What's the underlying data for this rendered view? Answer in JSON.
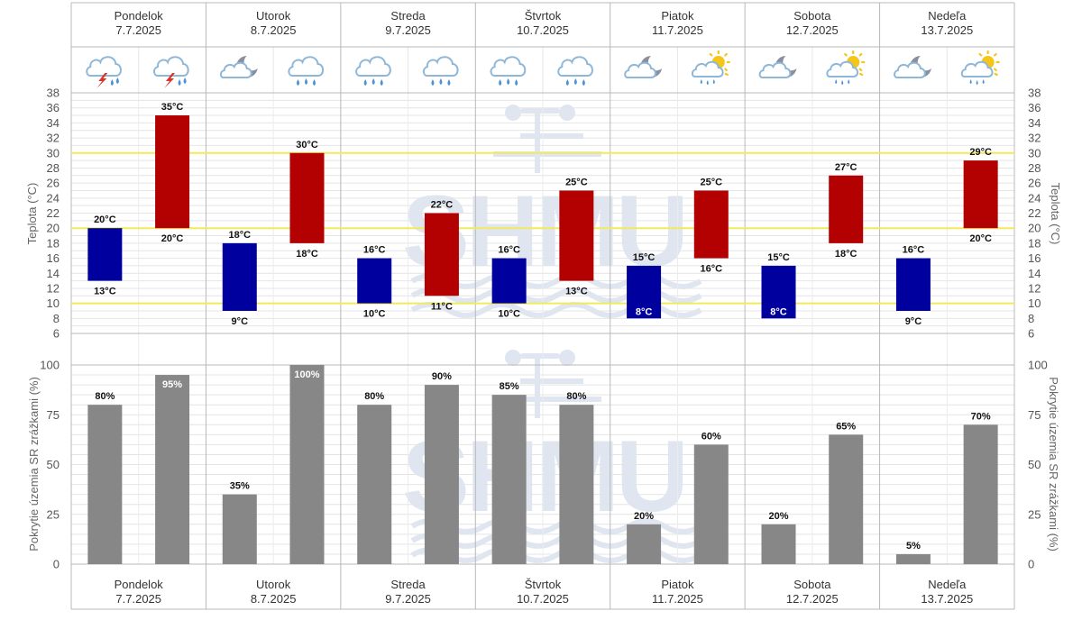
{
  "days": [
    {
      "name": "Pondelok",
      "date": "7.7.2025",
      "icons": [
        "storm-icon",
        "storm-icon"
      ]
    },
    {
      "name": "Utorok",
      "date": "8.7.2025",
      "icons": [
        "partly-cloudy-night-icon",
        "rain-icon"
      ]
    },
    {
      "name": "Streda",
      "date": "9.7.2025",
      "icons": [
        "rain-icon",
        "rain-icon"
      ]
    },
    {
      "name": "Štvrtok",
      "date": "10.7.2025",
      "icons": [
        "rain-icon",
        "rain-icon"
      ]
    },
    {
      "name": "Piatok",
      "date": "11.7.2025",
      "icons": [
        "partly-cloudy-night-icon",
        "sun-shower-icon"
      ]
    },
    {
      "name": "Sobota",
      "date": "12.7.2025",
      "icons": [
        "partly-cloudy-night-icon",
        "sun-shower-icon"
      ]
    },
    {
      "name": "Nedeľa",
      "date": "13.7.2025",
      "icons": [
        "partly-cloudy-night-icon",
        "sun-shower-icon"
      ]
    }
  ],
  "colors": {
    "min_bar": "#00009e",
    "max_bar": "#b30000",
    "precip_bar": "#878787",
    "threshold_line": "#f2ea5a",
    "grid": "#e4e4e4",
    "day_separator": "#b8b8b8",
    "watermark": "#c5d3e6"
  },
  "chart_data": [
    {
      "type": "bar",
      "title": "",
      "ylabel": "Teplota (°C)",
      "unit": "°C",
      "ylim": [
        6,
        38
      ],
      "yticks": [
        6,
        8,
        10,
        12,
        14,
        16,
        18,
        20,
        22,
        24,
        26,
        28,
        30,
        32,
        34,
        36,
        38
      ],
      "threshold_lines": [
        10,
        20,
        30
      ],
      "series": [
        {
          "name": "min",
          "ranges": [
            [
              13,
              20
            ],
            [
              9,
              18
            ],
            [
              10,
              16
            ],
            [
              10,
              16
            ],
            [
              8,
              15
            ],
            [
              8,
              15
            ],
            [
              9,
              16
            ]
          ]
        },
        {
          "name": "max",
          "ranges": [
            [
              20,
              35
            ],
            [
              18,
              30
            ],
            [
              11,
              22
            ],
            [
              13,
              25
            ],
            [
              16,
              25
            ],
            [
              18,
              27
            ],
            [
              20,
              29
            ]
          ]
        }
      ]
    },
    {
      "type": "bar",
      "title": "",
      "ylabel": "Pokrytie územia SR zrážkami (%)",
      "unit": "%",
      "ylim": [
        0,
        100
      ],
      "yticks": [
        0,
        25,
        50,
        75,
        100
      ],
      "series": [
        {
          "name": "first-half",
          "values": [
            80,
            35,
            80,
            85,
            20,
            20,
            5
          ]
        },
        {
          "name": "second-half",
          "values": [
            95,
            100,
            90,
            80,
            60,
            65,
            70
          ]
        }
      ]
    }
  ]
}
